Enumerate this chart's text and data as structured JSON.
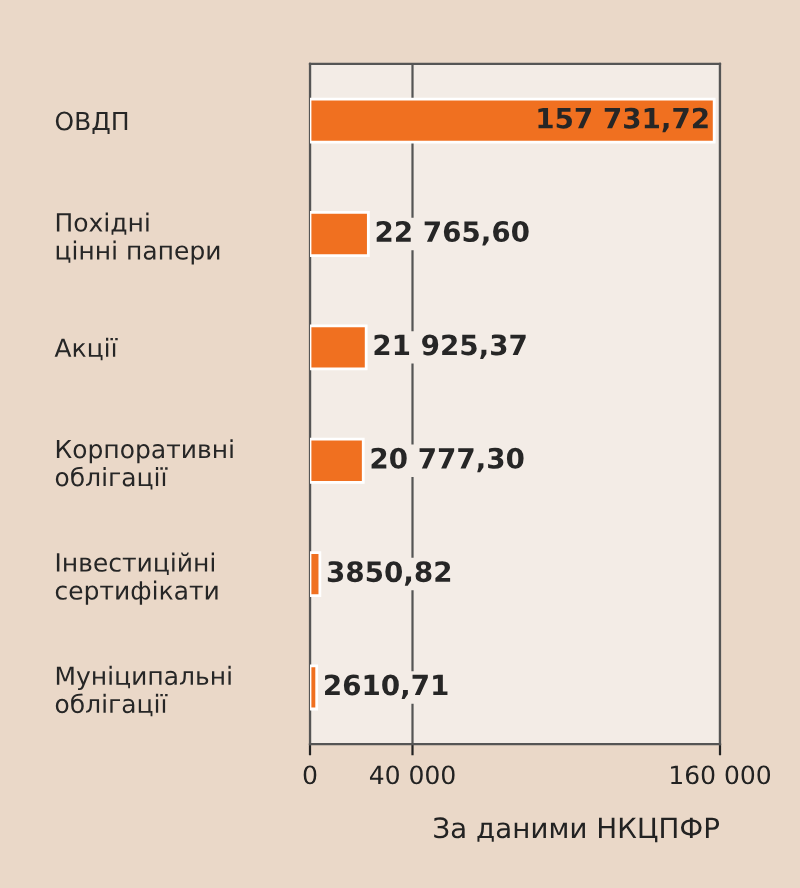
{
  "chart_data": {
    "type": "bar",
    "orientation": "horizontal",
    "categories": [
      "ОВДП",
      "Похідні\nцінні папери",
      "Акції",
      "Корпоративні\nоблігації",
      "Інвестиційні\nсертифікати",
      "Муніципальні\nоблігації"
    ],
    "values": [
      157731.72,
      22765.6,
      21925.37,
      20777.3,
      3850.82,
      2610.71
    ],
    "value_labels": [
      "157 731,72",
      "22 765,60",
      "21 925,37",
      "20 777,30",
      "3850,82",
      "2610,71"
    ],
    "color": "#f07020",
    "xlim": [
      0,
      160000
    ],
    "xticks": [
      0,
      {
        "value": 40000,
        "label": "40 000"
      },
      {
        "value": 160000,
        "label": "160 000"
      }
    ],
    "grid": "x",
    "annotations": [
      "За даними НКЦПФР"
    ]
  }
}
